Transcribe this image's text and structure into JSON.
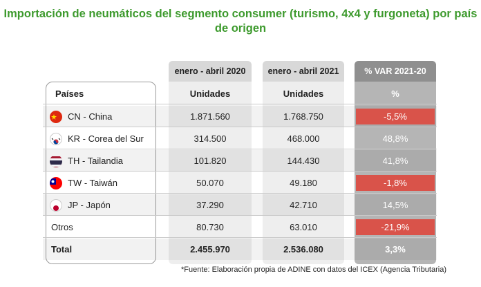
{
  "title": "Importación de neumáticos del segmento consumer (turismo, 4x4 y furgoneta) por país de origen",
  "columns": {
    "period1": "enero - abril 2020",
    "period2": "enero - abril 2021",
    "variation": "% VAR 2021-20"
  },
  "header_row": {
    "country": "Países",
    "units1": "Unidades",
    "units2": "Unidades",
    "pct": "%"
  },
  "rows": [
    {
      "flag": "china-flag-icon",
      "country": "CN - China",
      "v2020": "1.871.560",
      "v2021": "1.768.750",
      "var": "-5,5%",
      "negative": true
    },
    {
      "flag": "south-korea-flag-icon",
      "country": "KR - Corea del Sur",
      "v2020": "314.500",
      "v2021": "468.000",
      "var": "48,8%",
      "negative": false
    },
    {
      "flag": "thailand-flag-icon",
      "country": "TH - Tailandia",
      "v2020": "101.820",
      "v2021": "144.430",
      "var": "41,8%",
      "negative": false
    },
    {
      "flag": "taiwan-flag-icon",
      "country": "TW - Taiwán",
      "v2020": "50.070",
      "v2021": "49.180",
      "var": "-1,8%",
      "negative": true
    },
    {
      "flag": "japan-flag-icon",
      "country": "JP -  Japón",
      "v2020": "37.290",
      "v2021": "42.710",
      "var": "14,5%",
      "negative": false
    },
    {
      "flag": "",
      "country": "Otros",
      "v2020": "80.730",
      "v2021": "63.010",
      "var": "-21,9%",
      "negative": true
    }
  ],
  "total": {
    "label": "Total",
    "v2020": "2.455.970",
    "v2021": "2.536.080",
    "var": "3,3%"
  },
  "footnote": "*Fuente: Elaboración propia de ADINE con datos del ICEX (Agencia Tributaria)",
  "colors": {
    "title_green": "#3d9a2d",
    "negative_red": "#d9534a",
    "variation_column": "#b5b5b5"
  }
}
